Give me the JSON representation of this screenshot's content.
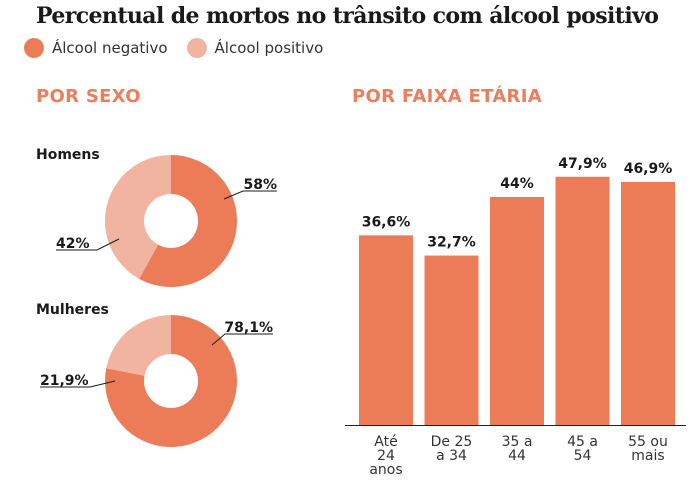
{
  "title": "Percentual de mortos no trânsito com álcool positivo",
  "legend": [
    {
      "label": "Álcool negativo",
      "color": "#ec7b58"
    },
    {
      "label": "Álcool positivo",
      "color": "#f0b4a0"
    }
  ],
  "colors": {
    "negative": "#ec7b58",
    "positive": "#f0b4a0",
    "section_title": "#e97f5c"
  },
  "sections": {
    "by_sex": "POR SEXO",
    "by_age": "POR FAIXA ETÁRIA"
  },
  "chart_data": [
    {
      "type": "pie",
      "title": "POR SEXO",
      "groups": [
        {
          "name": "Homens",
          "slices": [
            {
              "label": "Álcool negativo",
              "value": 58,
              "display": "58%"
            },
            {
              "label": "Álcool positivo",
              "value": 42,
              "display": "42%"
            }
          ]
        },
        {
          "name": "Mulheres",
          "slices": [
            {
              "label": "Álcool negativo",
              "value": 78.1,
              "display": "78,1%"
            },
            {
              "label": "Álcool positivo",
              "value": 21.9,
              "display": "21,9%"
            }
          ]
        }
      ]
    },
    {
      "type": "bar",
      "title": "POR FAIXA ETÁRIA",
      "categories": [
        "Até 24 anos",
        "De 25 a 34",
        "35 a 44",
        "45 a 54",
        "55 ou mais"
      ],
      "category_lines": [
        [
          "Até",
          "24",
          "anos"
        ],
        [
          "De 25",
          "a 34"
        ],
        [
          "35 a",
          "44"
        ],
        [
          "45 a",
          "54"
        ],
        [
          "55 ou",
          "mais"
        ]
      ],
      "values": [
        36.6,
        32.7,
        44,
        47.9,
        46.9
      ],
      "labels": [
        "36,6%",
        "32,7%",
        "44%",
        "47,9%",
        "46,9%"
      ],
      "ylim": [
        0,
        55
      ],
      "grid": false
    }
  ]
}
